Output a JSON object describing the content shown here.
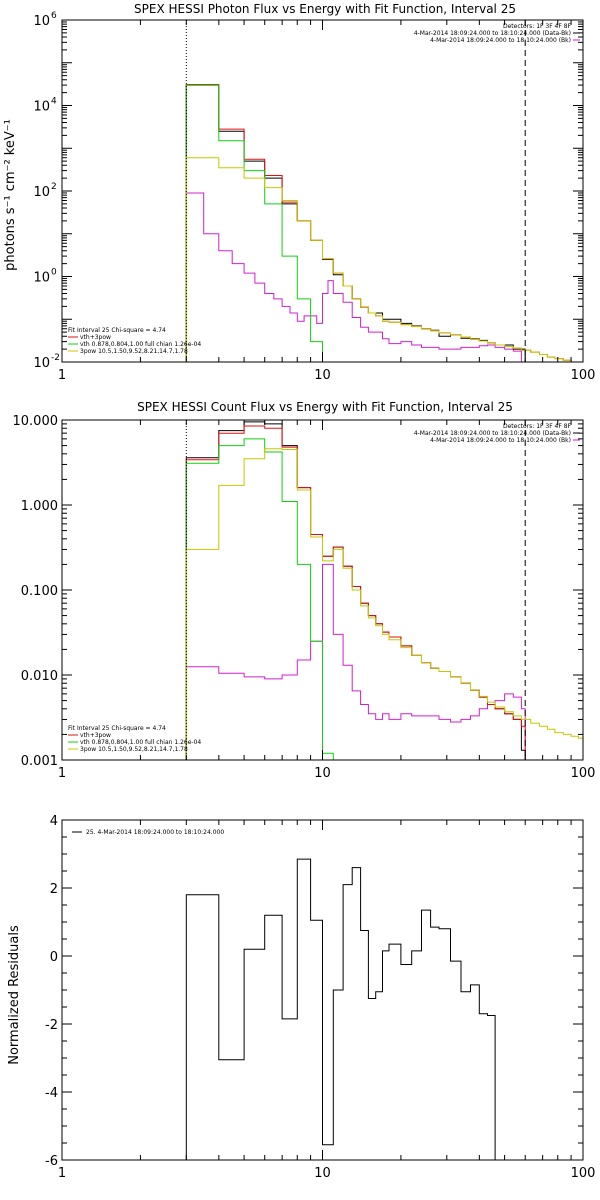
{
  "chart_data": [
    {
      "type": "line",
      "step": true,
      "title": "SPEX HESSI Photon Flux vs Energy with Fit Function, Interval 25",
      "xlabel": "",
      "ylabel": "photons s⁻¹ cm⁻² keV⁻¹",
      "xscale": "log",
      "yscale": "log",
      "xlim": [
        1,
        100
      ],
      "ylim": [
        0.01,
        1000000
      ],
      "xticks": [
        {
          "v": 1,
          "label": "1"
        },
        {
          "v": 10,
          "label": "10"
        },
        {
          "v": 100,
          "label": "100"
        }
      ],
      "yticks": [
        {
          "v": 0.01,
          "label": "10"
        },
        {
          "v": 1,
          "label": "10"
        },
        {
          "v": 100,
          "label": "10"
        },
        {
          "v": 10000,
          "label": "10"
        },
        {
          "v": 1000000,
          "label": "10"
        }
      ],
      "ytick_exps": [
        "-2",
        "0",
        "2",
        "4",
        "6"
      ],
      "vlines": [
        {
          "x": 3,
          "style": "dotted"
        },
        {
          "x": 60,
          "style": "dashed"
        }
      ],
      "legend_top": [
        "Detectors: 1F 3F 4F 8F",
        "4-Mar-2014 18:09:24.000 to 18:10:24.000 (Data-Bk)",
        "4-Mar-2014 18:09:24.000 to 18:10:24.000 (Bk)"
      ],
      "legend_bottom": [
        "Fit Interval 25   Chi-square = 4.74",
        "vth+3pow",
        "vth 0.878,0.804,1.00  full chian 1.26e-04",
        "3pow 10.5,1.50,9.52,8.21,14.7,1.78"
      ],
      "series": [
        {
          "name": "4-Mar-2014 18:09:24.000 to 18:10:24.000 (Bk)",
          "color": "#d020d0",
          "edges": [
            3,
            3.5,
            4,
            4.5,
            5,
            5.5,
            6,
            6.5,
            7,
            7.5,
            8,
            8.5,
            9,
            9.5,
            10,
            10.5,
            11,
            12,
            13,
            14,
            15,
            16,
            17,
            18,
            20,
            22,
            24,
            26,
            28,
            31,
            34,
            37,
            40,
            43,
            46,
            50,
            54,
            58
          ],
          "values": [
            90,
            10,
            4,
            2,
            1.2,
            0.7,
            0.4,
            0.3,
            0.2,
            0.14,
            0.09,
            0.12,
            0.12,
            0.08,
            0.4,
            0.8,
            0.4,
            0.25,
            0.11,
            0.065,
            0.05,
            0.05,
            0.035,
            0.027,
            0.03,
            0.025,
            0.022,
            0.022,
            0.02,
            0.02,
            0.022,
            0.022,
            0.024,
            0.025,
            0.022,
            0.02,
            0.018
          ]
        },
        {
          "name": "Data-Bk",
          "color": "#000000",
          "edges": [
            3,
            4,
            5,
            6,
            7,
            8,
            9,
            10,
            11,
            12,
            13,
            14,
            15,
            16,
            17,
            18,
            20,
            22,
            24,
            26,
            28,
            31,
            34,
            37,
            40,
            43,
            46,
            50,
            54,
            58,
            60
          ],
          "values": [
            30000,
            2500,
            500,
            200,
            50,
            20,
            7,
            2.5,
            1.1,
            0.6,
            0.3,
            0.19,
            0.14,
            0.14,
            0.1,
            0.1,
            0.08,
            0.07,
            0.06,
            0.055,
            0.04,
            0.043,
            0.036,
            0.035,
            0.032,
            0.028,
            0.025,
            0.025,
            0.02,
            0.02
          ]
        },
        {
          "name": "vth+3pow",
          "color": "#e01010",
          "edges": [
            3,
            4,
            5,
            6,
            7,
            8,
            9,
            10,
            11,
            12,
            13,
            14,
            15,
            16,
            17,
            18,
            20,
            22,
            24,
            26,
            28,
            31,
            34,
            37,
            40,
            43,
            46,
            50,
            54,
            58,
            63,
            68,
            73,
            78,
            84,
            90,
            96
          ],
          "values": [
            31000,
            2800,
            550,
            230,
            55,
            20,
            7,
            2.6,
            1.2,
            0.6,
            0.3,
            0.19,
            0.14,
            0.12,
            0.09,
            0.085,
            0.075,
            0.068,
            0.06,
            0.054,
            0.048,
            0.043,
            0.038,
            0.034,
            0.031,
            0.028,
            0.025,
            0.023,
            0.021,
            0.019,
            0.017,
            0.015,
            0.013,
            0.012,
            0.011,
            0.01
          ]
        },
        {
          "name": "vth 0.878,0.804,1.00  full chian 1.26e-04",
          "color": "#10d010",
          "edges": [
            3,
            4,
            5,
            6,
            7,
            8,
            9,
            10
          ],
          "values": [
            30000,
            1500,
            300,
            50,
            3,
            0.3,
            0.03
          ]
        },
        {
          "name": "3pow 10.5,1.50,9.52,8.21,14.7,1.78",
          "color": "#c8c800",
          "edges": [
            3,
            4,
            5,
            6,
            7,
            8,
            9,
            10,
            11,
            12,
            13,
            14,
            15,
            16,
            17,
            18,
            20,
            22,
            24,
            26,
            28,
            31,
            34,
            37,
            40,
            43,
            46,
            50,
            54,
            58,
            63,
            68,
            73,
            78,
            84,
            90,
            96
          ],
          "values": [
            600,
            350,
            200,
            120,
            60,
            20,
            7,
            2.6,
            1.2,
            0.6,
            0.3,
            0.19,
            0.14,
            0.12,
            0.09,
            0.085,
            0.075,
            0.068,
            0.06,
            0.054,
            0.048,
            0.043,
            0.038,
            0.034,
            0.031,
            0.028,
            0.025,
            0.023,
            0.021,
            0.019,
            0.017,
            0.015,
            0.013,
            0.012,
            0.011,
            0.01
          ]
        }
      ]
    },
    {
      "type": "line",
      "step": true,
      "title": "SPEX HESSI Count Flux vs Energy with Fit Function, Interval 25",
      "xlabel": "",
      "ylabel": "",
      "xscale": "log",
      "yscale": "log",
      "xlim": [
        1,
        100
      ],
      "ylim": [
        0.001,
        10
      ],
      "xticks": [
        {
          "v": 1,
          "label": "1"
        },
        {
          "v": 10,
          "label": "10"
        },
        {
          "v": 100,
          "label": "100"
        }
      ],
      "yticks": [
        {
          "v": 0.001,
          "label": "0.001"
        },
        {
          "v": 0.01,
          "label": "0.010"
        },
        {
          "v": 0.1,
          "label": "0.100"
        },
        {
          "v": 1,
          "label": "1.000"
        },
        {
          "v": 10,
          "label": "10.000"
        }
      ],
      "vlines": [
        {
          "x": 3,
          "style": "dotted"
        },
        {
          "x": 60,
          "style": "dashed"
        }
      ],
      "legend_top": [
        "Detectors: 1F 3F 4F 8F",
        "4-Mar-2014 18:09:24.000 to 18:10:24.000 (Data-Bk)",
        "4-Mar-2014 18:09:24.000 to 18:10:24.000 (Bk)"
      ],
      "legend_bottom": [
        "Fit Interval 25   Chi-square = 4.74",
        "vth+3pow",
        "vth 0.878,0.804,1.00  full chian 1.26e-04",
        "3pow 10.5,1.50,9.52,8.21,14.7,1.78"
      ],
      "series": [
        {
          "name": "4-Mar-2014 18:09:24.000 to 18:10:24.000 (Bk)",
          "color": "#d020d0",
          "edges": [
            3,
            4,
            5,
            6,
            7,
            8,
            9,
            10,
            11,
            12,
            13,
            14,
            15,
            16,
            17,
            18,
            20,
            22,
            24,
            26,
            28,
            31,
            34,
            37,
            40,
            43,
            46,
            50,
            54,
            58,
            60
          ],
          "values": [
            0.0125,
            0.0105,
            0.0095,
            0.009,
            0.01,
            0.015,
            0.025,
            0.2,
            0.03,
            0.013,
            0.0065,
            0.0045,
            0.0035,
            0.003,
            0.0035,
            0.003,
            0.0035,
            0.0033,
            0.0033,
            0.0033,
            0.003,
            0.0028,
            0.003,
            0.0033,
            0.004,
            0.0045,
            0.005,
            0.006,
            0.0055,
            0.004
          ]
        },
        {
          "name": "Data-Bk",
          "color": "#000000",
          "edges": [
            3,
            4,
            5,
            6,
            7,
            8,
            9,
            10,
            11,
            12,
            13,
            14,
            15,
            16,
            17,
            18,
            20,
            22,
            24,
            26,
            28,
            31,
            34,
            37,
            40,
            43,
            46,
            50,
            54,
            58,
            60
          ],
          "values": [
            3.6,
            7.5,
            9.5,
            9,
            5,
            1.6,
            0.45,
            0.25,
            0.32,
            0.19,
            0.11,
            0.07,
            0.05,
            0.04,
            0.032,
            0.028,
            0.022,
            0.017,
            0.014,
            0.012,
            0.011,
            0.0095,
            0.008,
            0.0066,
            0.0055,
            0.0045,
            0.004,
            0.0035,
            0.003,
            0.0013
          ]
        },
        {
          "name": "vth+3pow",
          "color": "#e01010",
          "edges": [
            3,
            4,
            5,
            6,
            7,
            8,
            9,
            10,
            11,
            12,
            13,
            14,
            15,
            16,
            17,
            18,
            20,
            22,
            24,
            26,
            28,
            31,
            34,
            37,
            40,
            43,
            46,
            50,
            54,
            58,
            60
          ],
          "values": [
            3.4,
            7,
            8.5,
            8,
            4.8,
            1.6,
            0.45,
            0.25,
            0.32,
            0.19,
            0.11,
            0.07,
            0.05,
            0.04,
            0.032,
            0.028,
            0.022,
            0.017,
            0.014,
            0.012,
            0.011,
            0.0095,
            0.008,
            0.0066,
            0.0055,
            0.0045,
            0.004,
            0.0035,
            0.003,
            0.0025
          ]
        },
        {
          "name": "vth 0.878,0.804,1.00  full chian 1.26e-04",
          "color": "#10d010",
          "edges": [
            3,
            4,
            5,
            6,
            7,
            8,
            9,
            10,
            11
          ],
          "values": [
            3.1,
            5,
            6,
            4.2,
            1.1,
            0.2,
            0.025,
            0.0012
          ]
        },
        {
          "name": "3pow 10.5,1.50,9.52,8.21,14.7,1.78",
          "color": "#c8c800",
          "edges": [
            3,
            4,
            5,
            6,
            7,
            8,
            9,
            10,
            11,
            12,
            13,
            14,
            15,
            16,
            17,
            18,
            20,
            22,
            24,
            26,
            28,
            31,
            34,
            37,
            40,
            43,
            46,
            50,
            54,
            58,
            63,
            68,
            73,
            78,
            84,
            90,
            96,
            100
          ],
          "values": [
            0.3,
            1.7,
            3.5,
            4.6,
            4.5,
            1.5,
            0.42,
            0.22,
            0.3,
            0.18,
            0.1,
            0.065,
            0.047,
            0.038,
            0.03,
            0.026,
            0.021,
            0.017,
            0.014,
            0.012,
            0.011,
            0.0095,
            0.008,
            0.0066,
            0.0056,
            0.0048,
            0.0042,
            0.0037,
            0.0033,
            0.003,
            0.0027,
            0.0025,
            0.0023,
            0.0021,
            0.002,
            0.0019,
            0.0018
          ]
        }
      ]
    },
    {
      "type": "line",
      "step": true,
      "title": "",
      "xlabel": "",
      "ylabel": "Normalized Residuals",
      "xscale": "log",
      "yscale": "linear",
      "xlim": [
        1,
        100
      ],
      "ylim": [
        -6,
        4
      ],
      "xticks": [
        {
          "v": 1,
          "label": "1"
        },
        {
          "v": 10,
          "label": "10"
        },
        {
          "v": 100,
          "label": "100"
        }
      ],
      "yticks": [
        {
          "v": -6,
          "label": "-6"
        },
        {
          "v": -4,
          "label": "-4"
        },
        {
          "v": -2,
          "label": "-2"
        },
        {
          "v": 0,
          "label": "0"
        },
        {
          "v": 2,
          "label": "2"
        },
        {
          "v": 4,
          "label": "4"
        }
      ],
      "legend_top": [
        "25.  4-Mar-2014 18:09:24.000 to 18:10:24.000"
      ],
      "series": [
        {
          "name": "25.  4-Mar-2014 18:09:24.000 to 18:10:24.000",
          "color": "#000000",
          "edges": [
            3,
            4,
            5,
            6,
            7,
            8,
            9,
            10,
            11,
            12,
            13,
            14,
            15,
            16,
            17,
            18,
            20,
            22,
            24,
            26,
            28,
            31,
            34,
            37,
            40,
            43,
            46,
            50,
            54,
            58,
            60
          ],
          "values": [
            1.8,
            -3.05,
            0.2,
            1.2,
            -1.85,
            2.85,
            1.05,
            -5.55,
            -1.0,
            2.1,
            2.6,
            0.75,
            -1.25,
            -1.05,
            0.15,
            0.35,
            -0.25,
            0.15,
            1.35,
            0.85,
            0.8,
            -0.15,
            -1.05,
            -0.85,
            -1.7,
            -1.75,
            -6,
            -6,
            -6,
            -6
          ]
        }
      ]
    }
  ]
}
